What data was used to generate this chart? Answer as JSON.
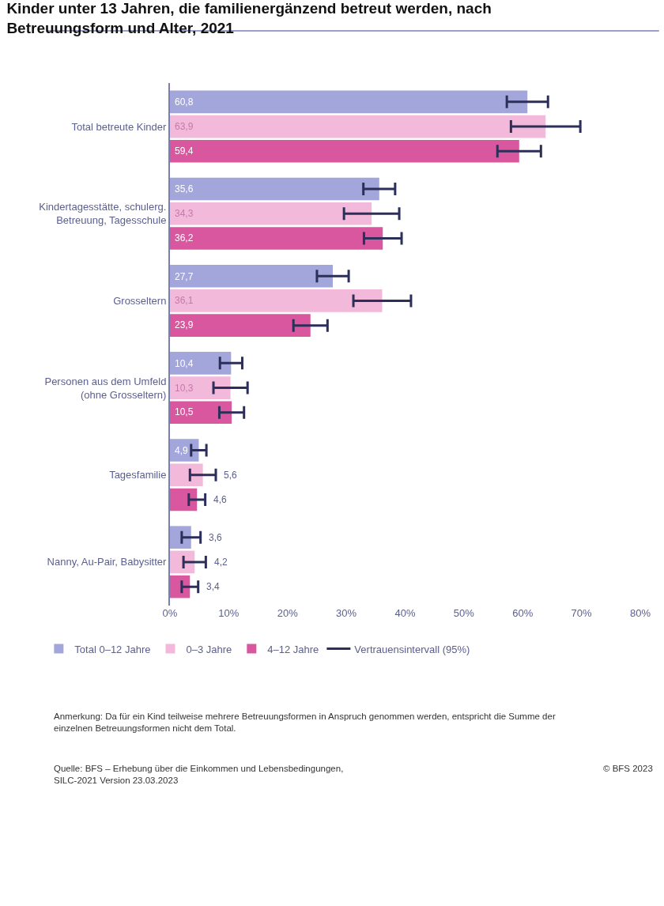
{
  "chart_data": {
    "type": "bar",
    "orientation": "horizontal",
    "title": "Kinder unter 13 Jahren, die familienergänzend betreut werden, nach Betreuungsform und Alter, 2021",
    "categories": [
      "Total betreute Kinder",
      "Kindertagesstätte, schulerg.\nBetreuung, Tagesschule",
      "Grosseltern",
      "Personen aus dem Umfeld\n(ohne Grosseltern)",
      "Tagesfamilie",
      "Nanny, Au-Pair, Babysitter"
    ],
    "series": [
      {
        "name": "Total 0–12 Jahre",
        "color": "#a3a6da",
        "values": [
          60.8,
          35.6,
          27.7,
          10.4,
          4.9,
          3.6
        ],
        "errors": [
          3.5,
          2.7,
          2.7,
          1.9,
          1.3,
          1.6
        ],
        "value_labels": [
          "60,8",
          "35,6",
          "27,7",
          "10,4",
          "4,9",
          "3,6"
        ]
      },
      {
        "name": "0–3 Jahre",
        "color": "#f3b9da",
        "values": [
          63.9,
          34.3,
          36.1,
          10.3,
          5.6,
          4.2
        ],
        "errors": [
          5.9,
          4.7,
          4.9,
          2.9,
          2.2,
          1.9
        ],
        "value_labels": [
          "63,9",
          "34,3",
          "36,1",
          "10,3",
          "5,6",
          "4,2"
        ]
      },
      {
        "name": "4–12 Jahre",
        "color": "#d9579f",
        "values": [
          59.4,
          36.2,
          23.9,
          10.5,
          4.6,
          3.4
        ],
        "errors": [
          3.7,
          3.2,
          2.9,
          2.1,
          1.4,
          1.4
        ],
        "value_labels": [
          "59,4",
          "36,2",
          "23,9",
          "10,5",
          "4,6",
          "3,4"
        ]
      }
    ],
    "xlim": [
      0,
      80
    ],
    "xticks": [
      {
        "value": 0,
        "label": "0%"
      },
      {
        "value": 10,
        "label": "10%"
      },
      {
        "value": 20,
        "label": "20%"
      },
      {
        "value": 30,
        "label": "30%"
      },
      {
        "value": 40,
        "label": "40%"
      },
      {
        "value": 50,
        "label": "50%"
      },
      {
        "value": 60,
        "label": "60%"
      },
      {
        "value": 70,
        "label": "70%"
      },
      {
        "value": 80,
        "label": "80%"
      }
    ],
    "legend": "bottom",
    "annotations": [
      "Vertrauensintervall (95%)",
      "Anmerkung: Da für ein Kind teilweise mehrere Betreuungsformen in Anspruch genommen werden, entspricht die Summe der einzelnen Betreuungsformen nicht dem Total.",
      "Quelle: BFS – Erhebung über die Einkommen und Lebensbedingungen, SILC-2021 Version 23.03.2023",
      "© BFS 2023"
    ]
  }
}
